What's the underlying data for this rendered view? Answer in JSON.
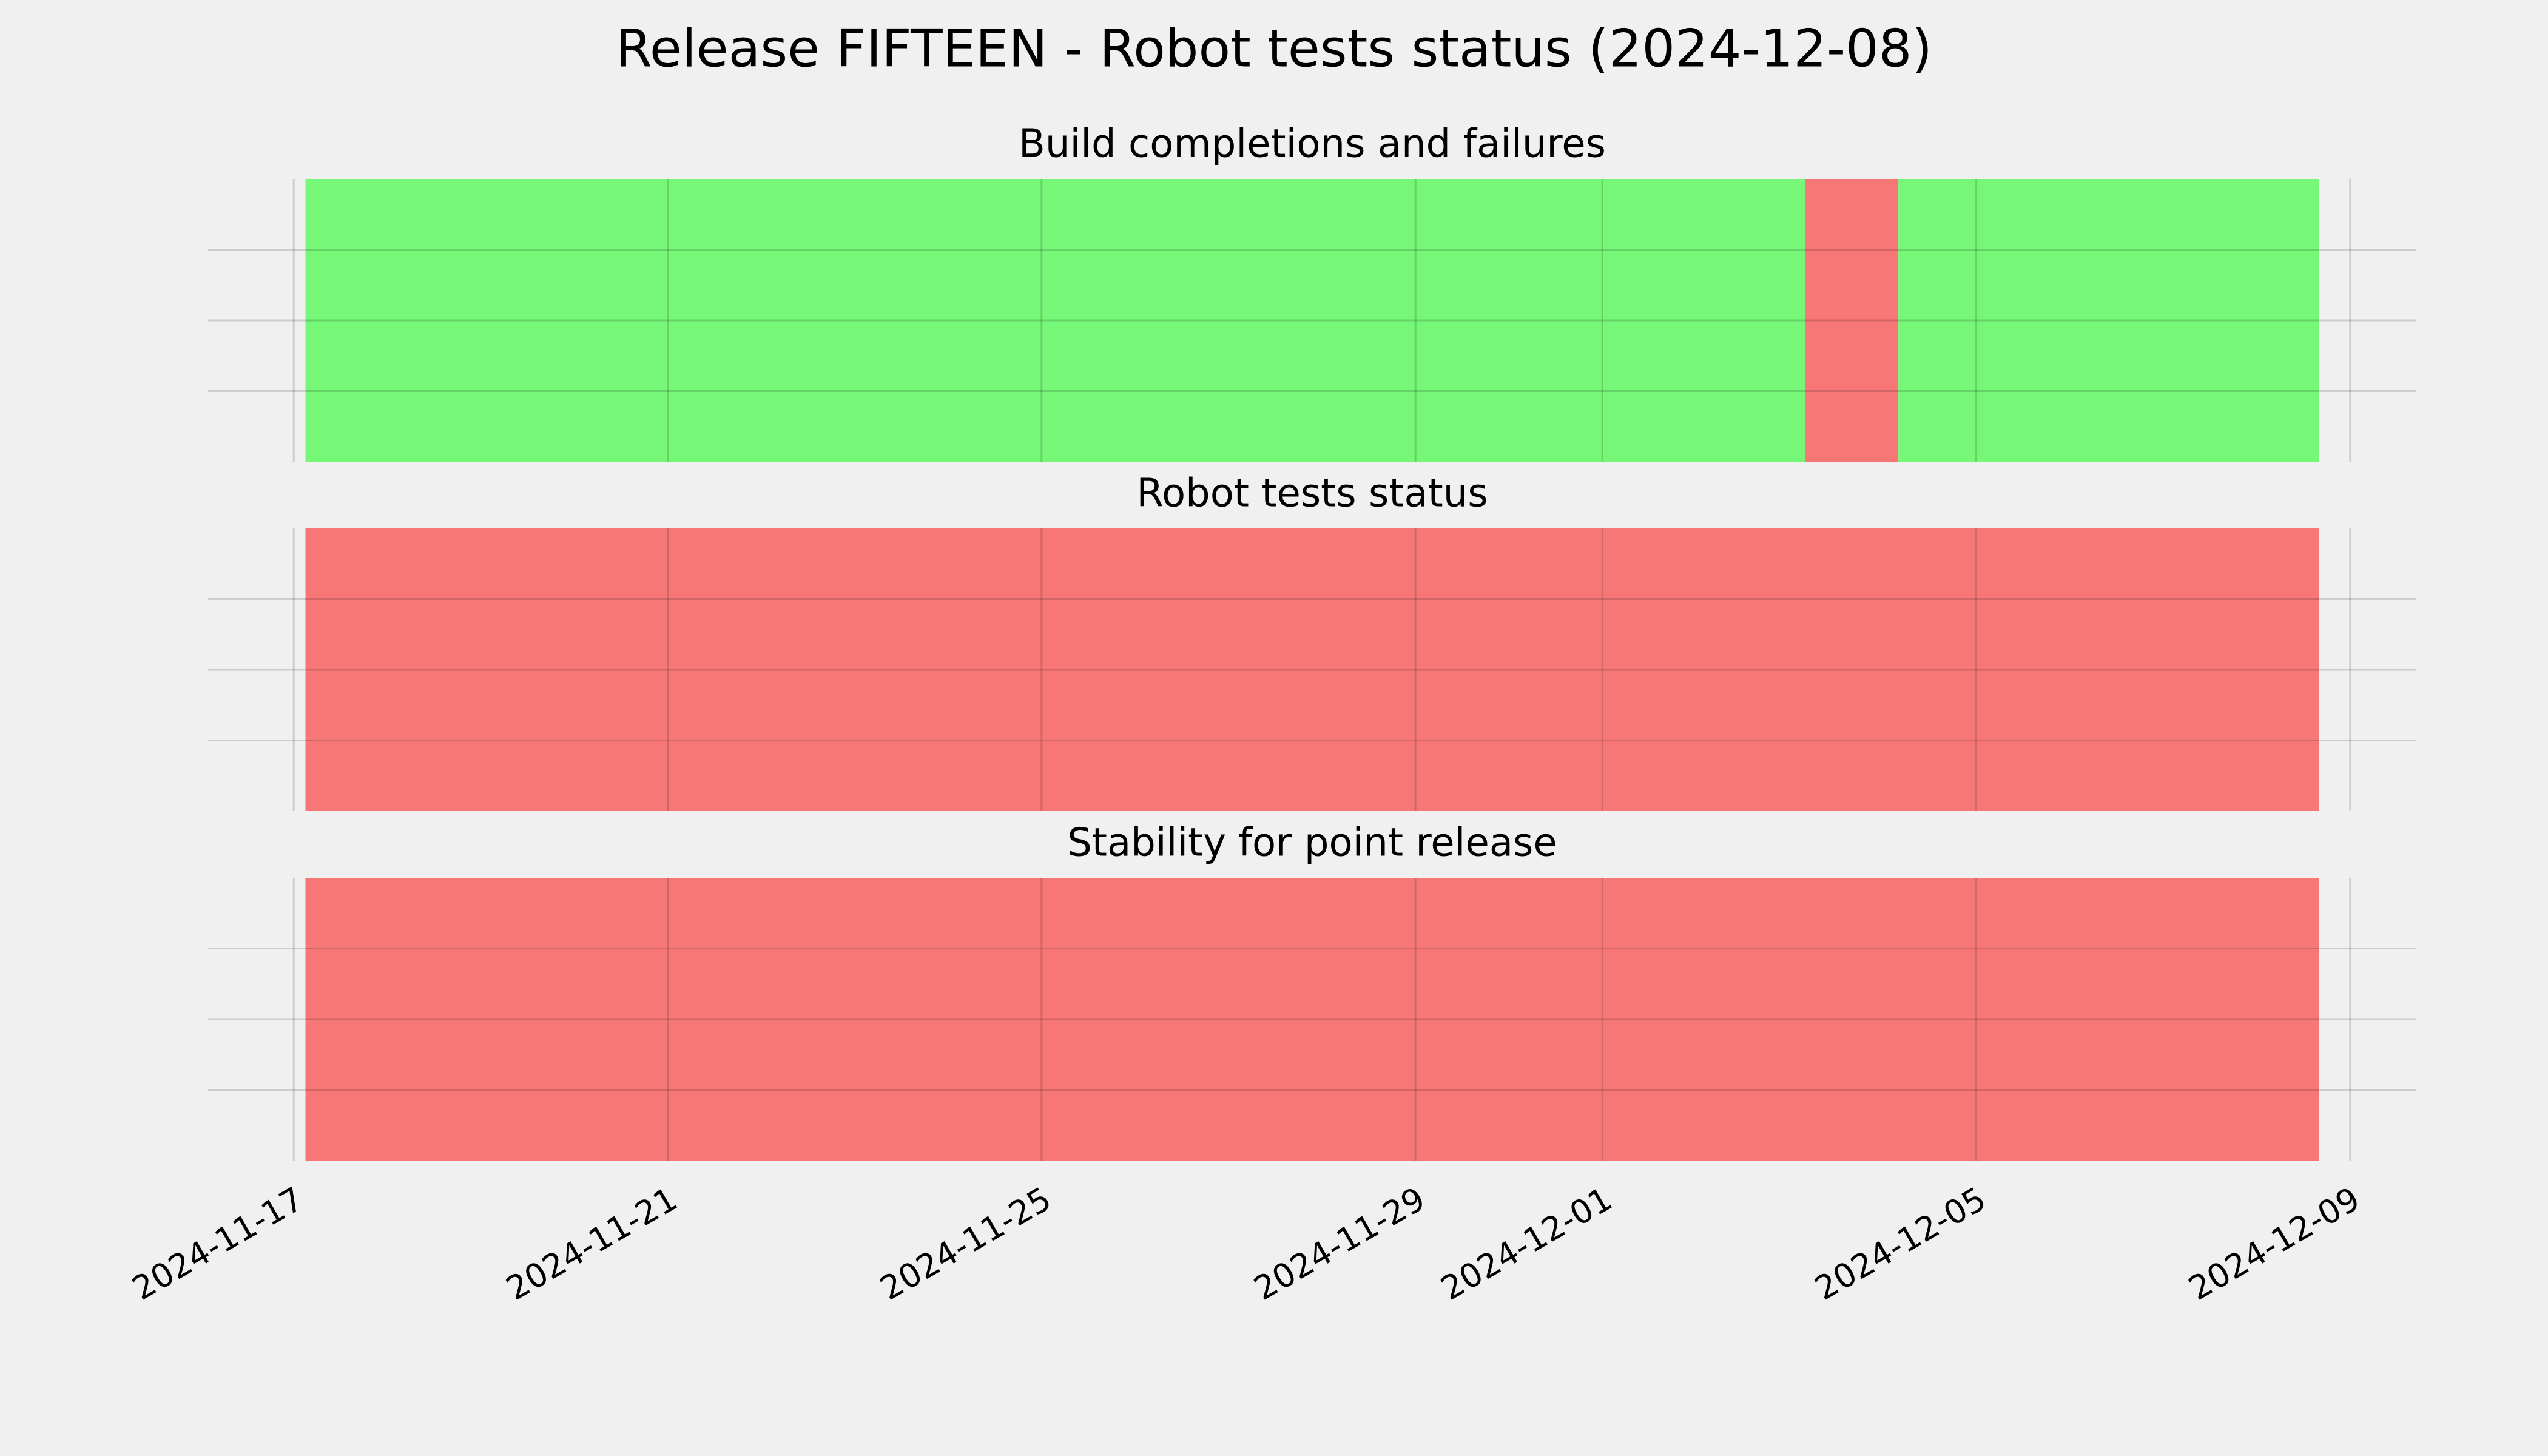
{
  "title": "Release FIFTEEN - Robot tests status (2024-12-08)",
  "chart_data": [
    {
      "type": "timeline",
      "title": "Build completions and failures",
      "xlim": [
        "2024-11-16T02:00",
        "2024-12-09T17:00"
      ],
      "xticks": [
        "2024-11-17",
        "2024-11-21",
        "2024-11-25",
        "2024-11-29",
        "2024-12-01",
        "2024-12-05",
        "2024-12-09"
      ],
      "ylim": [
        0,
        1
      ],
      "yticks": [
        0.25,
        0.5,
        0.75
      ],
      "show_ytick_labels": false,
      "grid": true,
      "spans": [
        {
          "start": "2024-11-17T03:00",
          "end": "2024-12-03T04:00",
          "color": "#76f777"
        },
        {
          "start": "2024-12-03T04:00",
          "end": "2024-12-04T04:00",
          "color": "#f77777"
        },
        {
          "start": "2024-12-04T04:00",
          "end": "2024-12-08T16:00",
          "color": "#76f777"
        }
      ]
    },
    {
      "type": "timeline",
      "title": "Robot tests status",
      "xlim": [
        "2024-11-16T02:00",
        "2024-12-09T17:00"
      ],
      "xticks": [
        "2024-11-17",
        "2024-11-21",
        "2024-11-25",
        "2024-11-29",
        "2024-12-01",
        "2024-12-05",
        "2024-12-09"
      ],
      "ylim": [
        0,
        1
      ],
      "yticks": [
        0.25,
        0.5,
        0.75
      ],
      "show_ytick_labels": false,
      "grid": true,
      "spans": [
        {
          "start": "2024-11-17T03:00",
          "end": "2024-12-08T16:00",
          "color": "#f77777"
        }
      ]
    },
    {
      "type": "timeline",
      "title": "Stability for point release",
      "xlim": [
        "2024-11-16T02:00",
        "2024-12-09T17:00"
      ],
      "xticks": [
        "2024-11-17",
        "2024-11-21",
        "2024-11-25",
        "2024-11-29",
        "2024-12-01",
        "2024-12-05",
        "2024-12-09"
      ],
      "ylim": [
        0,
        1
      ],
      "yticks": [
        0.25,
        0.5,
        0.75
      ],
      "show_ytick_labels": false,
      "grid": true,
      "spans": [
        {
          "start": "2024-11-17T03:00",
          "end": "2024-12-08T16:00",
          "color": "#f77777"
        }
      ]
    }
  ]
}
